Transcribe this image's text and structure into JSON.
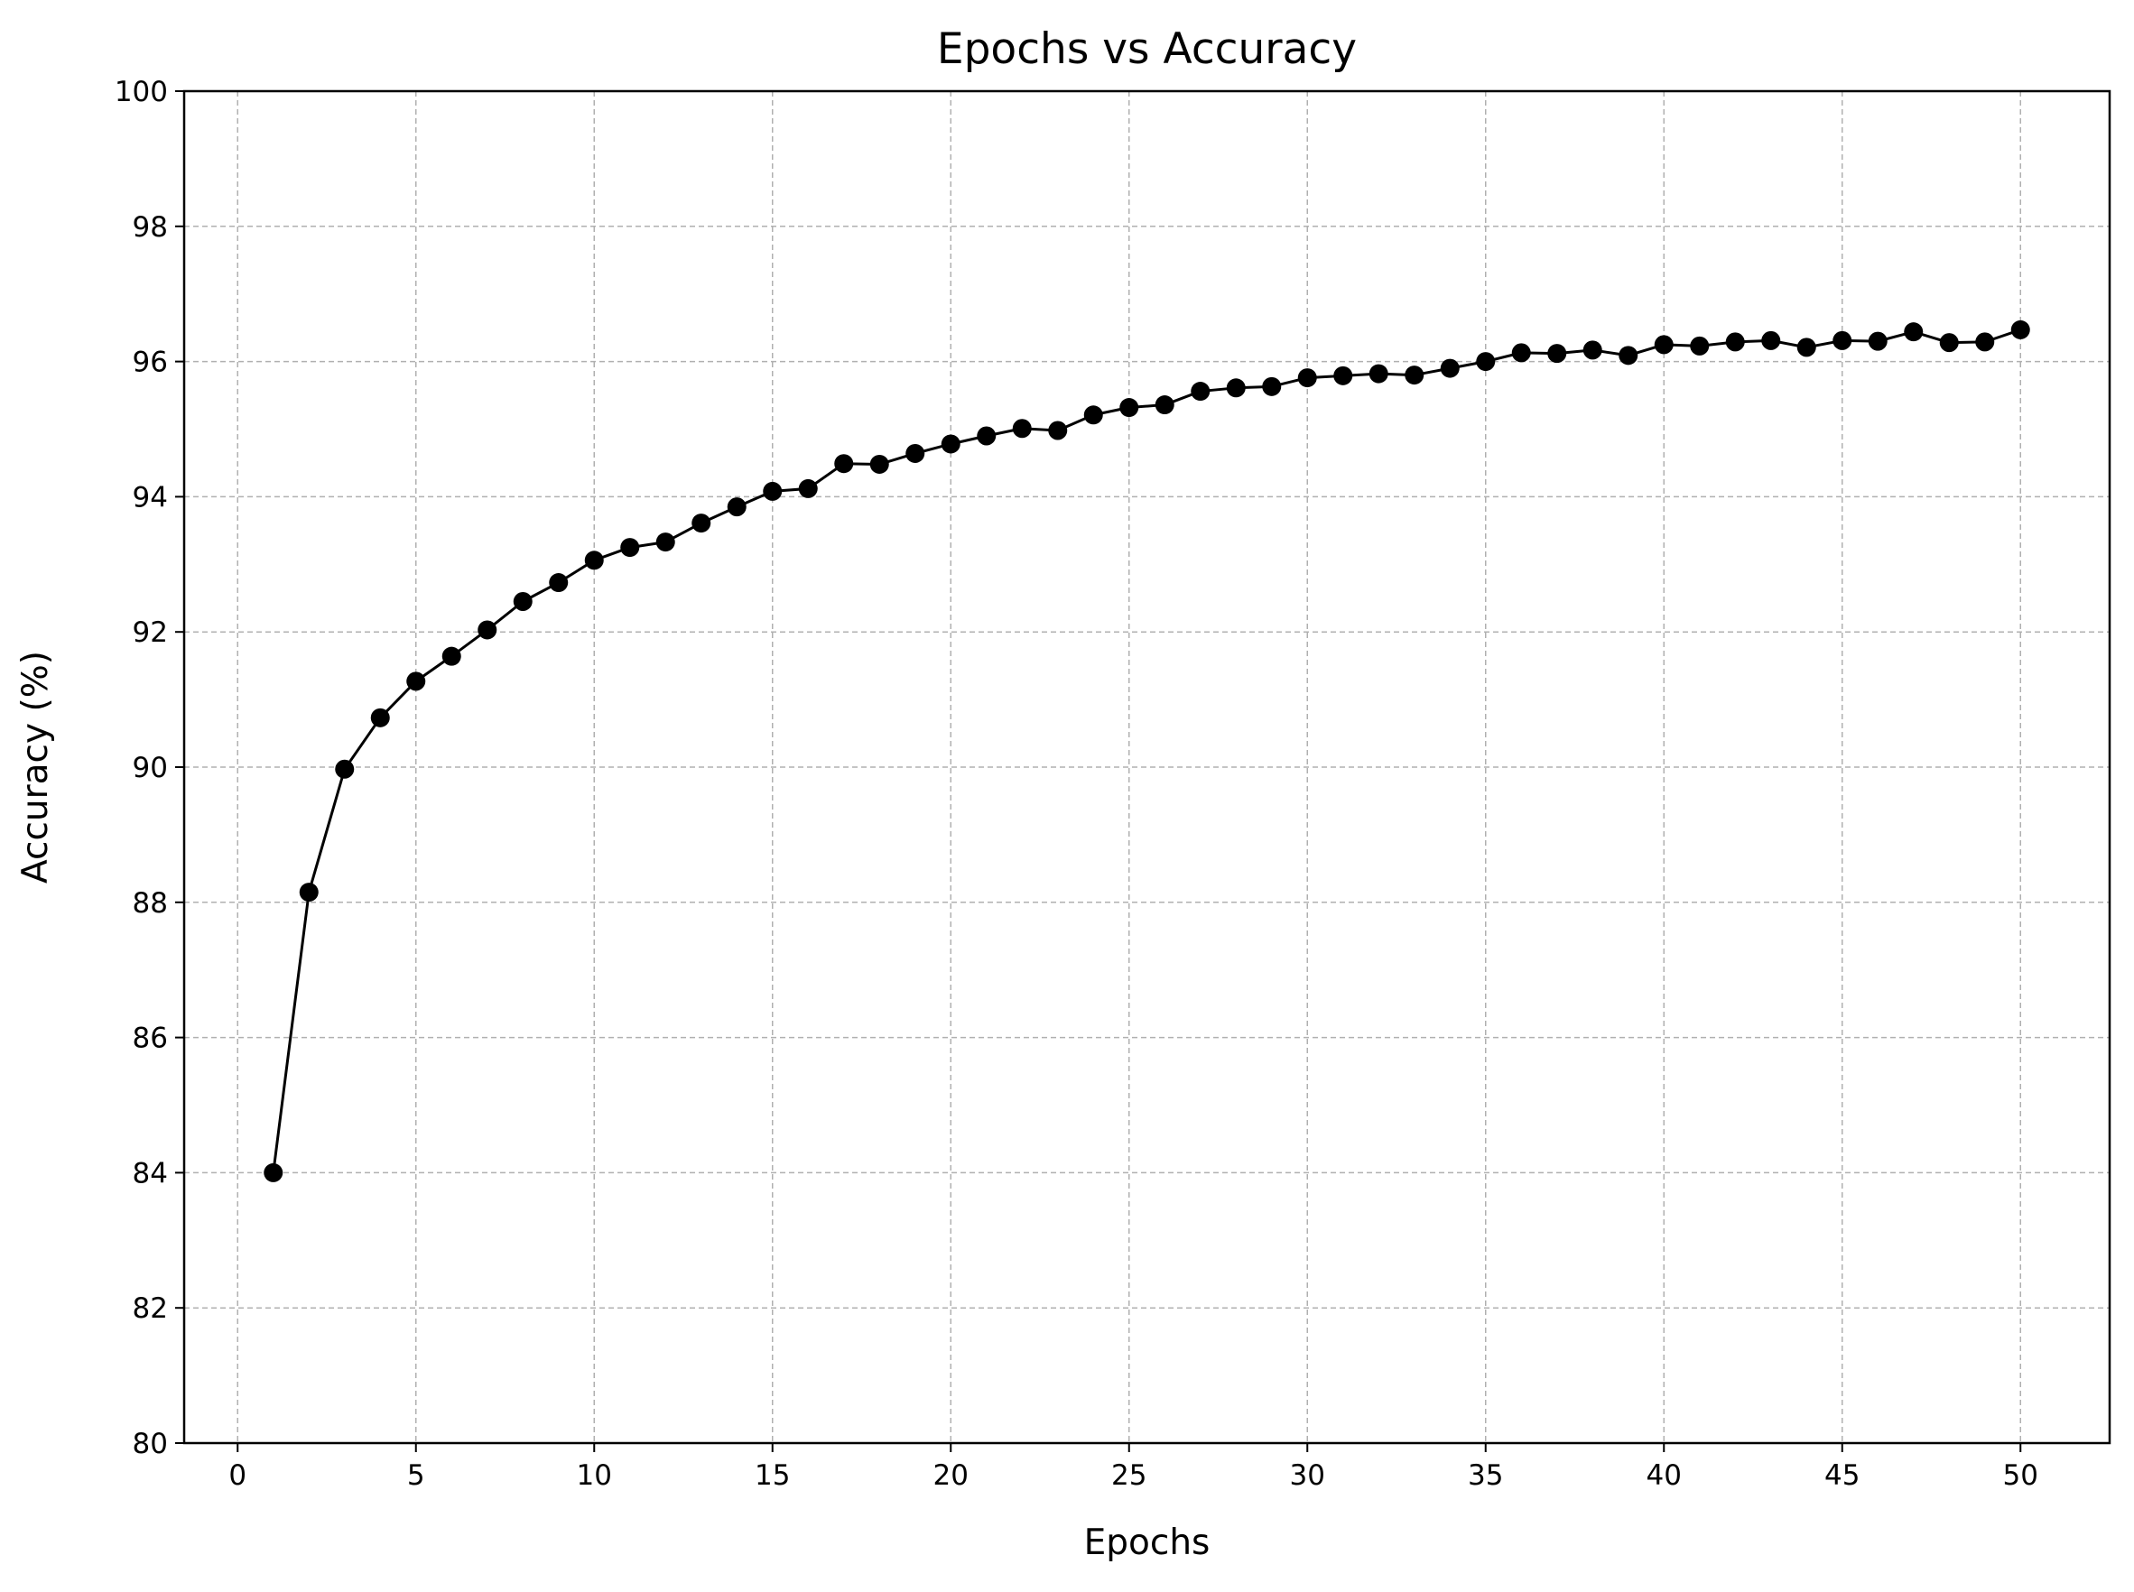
{
  "chart_data": {
    "type": "line",
    "title": "Epochs vs Accuracy",
    "xlabel": "Epochs",
    "ylabel": "Accuracy (%)",
    "xlim": [
      -1.5,
      52.5
    ],
    "ylim": [
      80,
      100
    ],
    "xticks": [
      0,
      5,
      10,
      15,
      20,
      25,
      30,
      35,
      40,
      45,
      50
    ],
    "yticks": [
      80,
      82,
      84,
      86,
      88,
      90,
      92,
      94,
      96,
      98,
      100
    ],
    "grid": true,
    "grid_style": "dashed",
    "marker": "circle",
    "colors": {
      "line": "#000000",
      "marker": "#000000",
      "grid": "#b0b0b0",
      "axes": "#000000"
    },
    "x": [
      1,
      2,
      3,
      4,
      5,
      6,
      7,
      8,
      9,
      10,
      11,
      12,
      13,
      14,
      15,
      16,
      17,
      18,
      19,
      20,
      21,
      22,
      23,
      24,
      25,
      26,
      27,
      28,
      29,
      30,
      31,
      32,
      33,
      34,
      35,
      36,
      37,
      38,
      39,
      40,
      41,
      42,
      43,
      44,
      45,
      46,
      47,
      48,
      49,
      50
    ],
    "values": [
      84.0,
      88.15,
      89.97,
      90.73,
      91.27,
      91.64,
      92.03,
      92.45,
      92.73,
      93.06,
      93.25,
      93.33,
      93.61,
      93.85,
      94.08,
      94.12,
      94.49,
      94.48,
      94.64,
      94.78,
      94.9,
      95.01,
      94.98,
      95.21,
      95.32,
      95.36,
      95.56,
      95.61,
      95.63,
      95.76,
      95.79,
      95.82,
      95.8,
      95.9,
      96.0,
      96.13,
      96.12,
      96.17,
      96.09,
      96.25,
      96.23,
      96.29,
      96.31,
      96.21,
      96.31,
      96.3,
      96.44,
      96.28,
      96.29,
      96.47
    ]
  }
}
